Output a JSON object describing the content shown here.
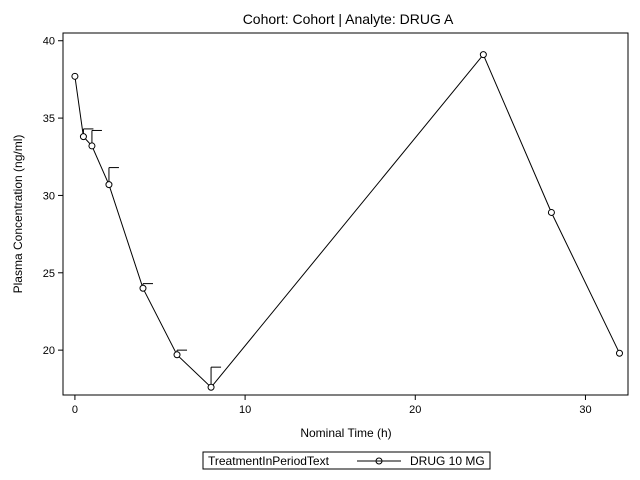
{
  "chart_data": {
    "type": "line",
    "title": "Cohort: Cohort | Analyte: DRUG A",
    "xlabel": "Nominal Time (h)",
    "ylabel": "Plasma Concentration (ng/ml)",
    "xlim": [
      -0.7,
      32.5
    ],
    "ylim": [
      17.1,
      40.5
    ],
    "xticks": [
      0,
      10,
      20,
      30
    ],
    "yticks": [
      20,
      25,
      30,
      35,
      40
    ],
    "grid": false,
    "legend": {
      "title": "TreatmentInPeriodText",
      "placement": "bottom-center"
    },
    "series": [
      {
        "name": "DRUG 10 MG",
        "color": "#000000",
        "marker": "open-circle",
        "x": [
          0,
          0.5,
          1,
          2,
          4,
          6,
          8,
          24,
          28,
          32
        ],
        "y": [
          37.7,
          33.8,
          33.2,
          30.7,
          24.0,
          19.7,
          17.6,
          39.1,
          28.9,
          19.8
        ],
        "error_upper": [
          null,
          34.3,
          34.2,
          31.8,
          24.3,
          20.0,
          18.9,
          null,
          null,
          null
        ]
      }
    ]
  }
}
